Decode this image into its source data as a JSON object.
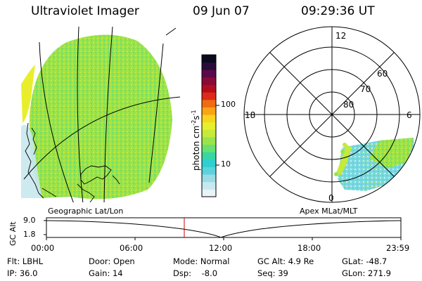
{
  "header": {
    "title": "Ultraviolet Imager",
    "date": "09 Jun 07",
    "time": "09:29:36 UT"
  },
  "colorbar": {
    "unit_label": "photon cm",
    "unit_sup_1": "-2",
    "unit_mid": "s",
    "unit_sup_2": "-1",
    "ticks": [
      "100",
      "10"
    ],
    "colors": [
      "#e8f4f8",
      "#c8e8ee",
      "#9adbe6",
      "#5dd2dc",
      "#2ecfcf",
      "#38d6a5",
      "#68e06f",
      "#9ae34d",
      "#c4ea3a",
      "#e7ee2c",
      "#f7d41e",
      "#f9a414",
      "#f06b12",
      "#dd2a16",
      "#b20d1e",
      "#8a0a36",
      "#5a0a4a",
      "#2a0b3a",
      "#0a0a1e"
    ]
  },
  "polar": {
    "labels": {
      "top": "12",
      "left": "18",
      "right": "6",
      "bottom": "0"
    },
    "lat_labels": [
      "60",
      "70",
      "80"
    ]
  },
  "map_titles": {
    "left": "Geographic Lat/Lon",
    "right": "Apex MLat/MLT"
  },
  "altitude_plot": {
    "ylabel": "GC Alt",
    "yticks": [
      "9.0",
      "1.8"
    ],
    "xticks": [
      "00:00",
      "06:00",
      "12:00",
      "18:00",
      "23:59"
    ],
    "marker_color": "#cc0000",
    "curve_min_time": "12:00",
    "marker_time": "09:29"
  },
  "info": {
    "flt": "Flt: LBHL",
    "ip": "IP: 36.0",
    "door": "Door: Open",
    "gain": "Gain: 14",
    "mode": "Mode: Normal",
    "dsp": "Dsp:    -8.0",
    "gcalt": "GC Alt: 4.9 Re",
    "seq": "Seq: 39",
    "glat": "GLat: -48.7",
    "glon": "GLon: 271.9"
  }
}
